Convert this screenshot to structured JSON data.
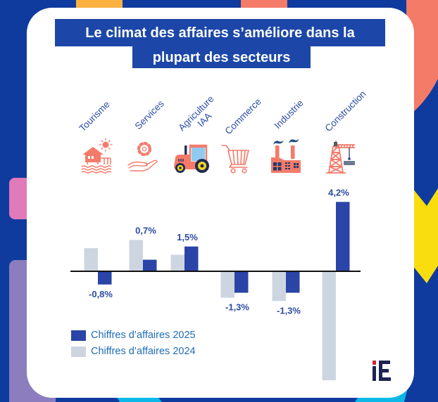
{
  "title": {
    "line1": "Le climat des affaires s’améliore dans la",
    "line2": "plupart des secteurs"
  },
  "sectors": [
    {
      "label": "Tourisme",
      "icon": "beach-hut-sun-icon"
    },
    {
      "label": "Services",
      "icon": "gear-in-hand-icon"
    },
    {
      "label_line1": "Agriculture",
      "label_line2": "IAA",
      "icon": "tractor-icon"
    },
    {
      "label": "Commerce",
      "icon": "shopping-cart-icon"
    },
    {
      "label": "Industrie",
      "icon": "factory-icon"
    },
    {
      "label": "Construction",
      "icon": "crane-icon"
    }
  ],
  "legend": [
    {
      "label": "Chiffres d’affaires 2025",
      "color": "#2A44A7"
    },
    {
      "label": "Chiffres d’affaires 2024",
      "color": "#CDD6E0"
    }
  ],
  "brand": {
    "logo_text": "iE",
    "accent": "#D1213C",
    "color": "#1C2452"
  },
  "colors": {
    "background": "#0F3B9F",
    "title_box": "#1C47A8",
    "icon_coral": "#F47B6A",
    "sector_label": "#2D4EA7"
  },
  "chart_data": {
    "type": "bar",
    "title": "Le climat des affaires s’améliore dans la plupart des secteurs",
    "categories": [
      "Tourisme",
      "Services",
      "Agriculture IAA",
      "Commerce",
      "Industrie",
      "Construction"
    ],
    "series": [
      {
        "name": "Chiffres d’affaires 2025",
        "color": "#2A44A7",
        "values": [
          -0.8,
          0.7,
          1.5,
          -1.3,
          -1.3,
          4.2
        ],
        "data_labels": [
          "-0,8%",
          "0,7%",
          "1,5%",
          "-1,3%",
          "-1,3%",
          "4,2%"
        ]
      },
      {
        "name": "Chiffres d’affaires 2024",
        "color": "#CDD6E0",
        "values": [
          1.4,
          1.9,
          1.0,
          -1.6,
          -1.8,
          -6.6
        ],
        "data_labels": []
      }
    ],
    "unit": "%",
    "xlabel": "",
    "ylabel": "",
    "ylim": [
      -7,
      5
    ],
    "grid": false,
    "zero_line": true,
    "legend": "bottom-left"
  }
}
